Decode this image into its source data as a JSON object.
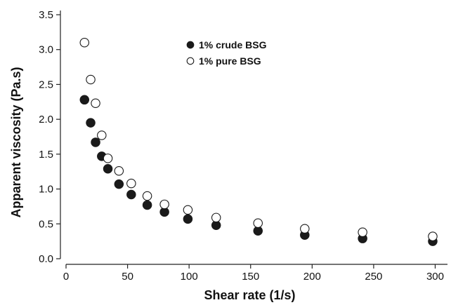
{
  "chart_data": {
    "type": "scatter",
    "title": "",
    "xlabel": "Shear rate (1/s)",
    "ylabel": "Apparent viscosity (Pa.s)",
    "xlim": [
      0,
      310
    ],
    "ylim": [
      0,
      3.5
    ],
    "x_ticks": [
      0,
      50,
      100,
      150,
      200,
      250,
      300
    ],
    "x_tick_labels": [
      "0",
      "50",
      "100",
      "150",
      "200",
      "250",
      "300"
    ],
    "y_ticks": [
      0,
      0.5,
      1.0,
      1.5,
      2.0,
      2.5,
      3.0,
      3.5
    ],
    "y_tick_labels": [
      "0.0",
      "0.5",
      "1.0",
      "1.5",
      "2.0",
      "2.5",
      "3.0",
      "3.5"
    ],
    "grid": false,
    "legend_position": "top-center",
    "series": [
      {
        "name": "1% crude BSG",
        "marker": "filled-circle",
        "color": "#1a1a1a",
        "points": [
          [
            15,
            2.28
          ],
          [
            20,
            1.95
          ],
          [
            24,
            1.67
          ],
          [
            29,
            1.47
          ],
          [
            34,
            1.29
          ],
          [
            43,
            1.07
          ],
          [
            53,
            0.92
          ],
          [
            66,
            0.77
          ],
          [
            80,
            0.67
          ],
          [
            99,
            0.57
          ],
          [
            122,
            0.48
          ],
          [
            156,
            0.4
          ],
          [
            194,
            0.34
          ],
          [
            241,
            0.29
          ],
          [
            298,
            0.25
          ]
        ]
      },
      {
        "name": "1% pure BSG",
        "marker": "open-circle",
        "color": "#1a1a1a",
        "points": [
          [
            15,
            3.1
          ],
          [
            20,
            2.57
          ],
          [
            24,
            2.23
          ],
          [
            29,
            1.77
          ],
          [
            34,
            1.44
          ],
          [
            43,
            1.26
          ],
          [
            53,
            1.08
          ],
          [
            66,
            0.9
          ],
          [
            80,
            0.78
          ],
          [
            99,
            0.7
          ],
          [
            122,
            0.59
          ],
          [
            156,
            0.51
          ],
          [
            194,
            0.43
          ],
          [
            241,
            0.38
          ],
          [
            298,
            0.32
          ]
        ]
      }
    ]
  }
}
